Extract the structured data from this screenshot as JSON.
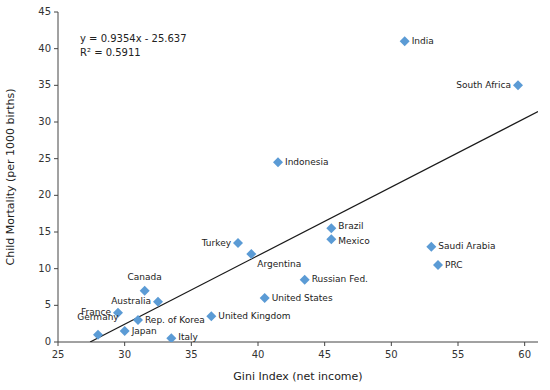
{
  "chart_data": {
    "type": "scatter",
    "xlabel": "Gini Index (net income)",
    "ylabel": "Child Mortality (per 1000 births)",
    "xlim": [
      25,
      61
    ],
    "ylim": [
      0,
      45
    ],
    "xticks": [
      25,
      30,
      35,
      40,
      45,
      50,
      55,
      60
    ],
    "yticks": [
      0,
      5,
      10,
      15,
      20,
      25,
      30,
      35,
      40,
      45
    ],
    "grid": false,
    "annotations": [
      "y = 0.9354x - 25.637",
      "R² = 0.5911"
    ],
    "series": [
      {
        "type": "scatter",
        "marker": "diamond",
        "color": "#5B9BD5",
        "x": [
          28.0,
          30.0,
          31.0,
          29.5,
          31.5,
          32.5,
          33.5,
          36.5,
          38.5,
          39.5,
          40.5,
          41.5,
          43.5,
          45.5,
          45.5,
          51.0,
          53.5,
          53.0,
          59.5
        ],
        "values": [
          1.0,
          1.5,
          3.0,
          4.0,
          7.0,
          5.5,
          0.5,
          3.5,
          13.5,
          12.0,
          6.0,
          24.5,
          8.5,
          15.5,
          14.0,
          41.0,
          10.5,
          13.0,
          35.0
        ],
        "labels": [
          "Germany",
          "Japan",
          "Rep. of Korea",
          "France",
          "Canada",
          "Australia",
          "Italy",
          "United Kingdom",
          "Turkey",
          "Argentina",
          "United States",
          "Indonesia",
          "Russian Fed.",
          "Brazil",
          "Mexico",
          "India",
          "PRC",
          "Saudi Arabia",
          "South Africa"
        ]
      },
      {
        "type": "line",
        "line_style": "solid",
        "color": "#1a1a1a",
        "x": [
          27.4075262,
          61
        ],
        "values": [
          0,
          31.4224
        ]
      }
    ]
  }
}
